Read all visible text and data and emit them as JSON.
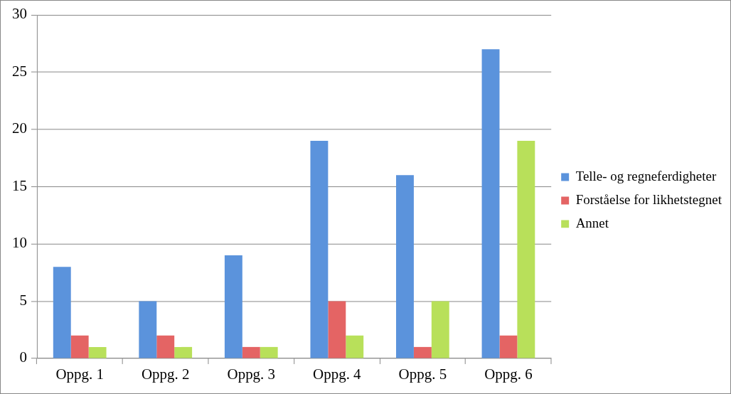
{
  "chart_data": {
    "type": "bar",
    "categories": [
      "Oppg. 1",
      "Oppg. 2",
      "Oppg. 3",
      "Oppg. 4",
      "Oppg. 5",
      "Oppg. 6"
    ],
    "series": [
      {
        "name": "Telle- og regneferdigheter",
        "color": "#5b93dc",
        "values": [
          8,
          5,
          9,
          19,
          16,
          27
        ]
      },
      {
        "name": "Forståelse for likhetstegnet",
        "color": "#e46464",
        "values": [
          2,
          2,
          1,
          5,
          1,
          2
        ]
      },
      {
        "name": "Annet",
        "color": "#b8e05a",
        "values": [
          1,
          1,
          1,
          2,
          5,
          19
        ]
      }
    ],
    "ylim": [
      0,
      30
    ],
    "yticks": [
      0,
      5,
      10,
      15,
      20,
      25,
      30
    ],
    "grid": "y",
    "legend": "right"
  }
}
